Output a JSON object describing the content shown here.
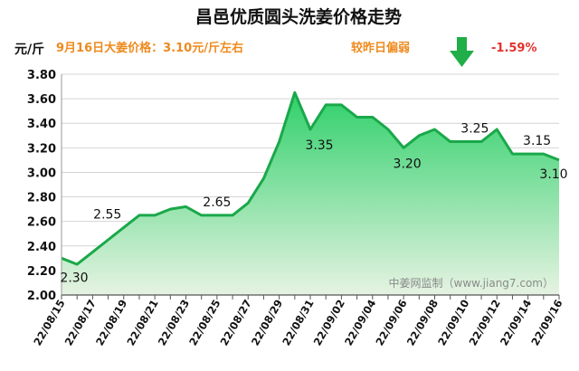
{
  "header": {
    "title": "昌邑优质圆头洗姜价格走势",
    "unit_label": "元/斤",
    "price_note": "9月16日大姜价格：3.10元/斤左右",
    "trend_note": "较昨日偏弱",
    "change_pct": "-1.59%",
    "trend_icon": "down-arrow-icon"
  },
  "watermark": "中姜网监制（www.jiang7.com）",
  "colors": {
    "line": "#1aa84a",
    "fill_top": "#2fd06a",
    "fill_bottom": "#e6f3e2",
    "orange": "#ee8a1e",
    "red": "#e2322d",
    "arrow": "#1fae48"
  },
  "chart_data": {
    "type": "area",
    "title": "昌邑优质圆头洗姜价格走势",
    "ylabel": "元/斤",
    "xlabel": "",
    "ylim": [
      2.0,
      3.8
    ],
    "yticks": [
      "2.00",
      "2.20",
      "2.40",
      "2.60",
      "2.80",
      "3.00",
      "3.20",
      "3.40",
      "3.60",
      "3.80"
    ],
    "x": [
      "22/08/15",
      "22/08/16",
      "22/08/17",
      "22/08/18",
      "22/08/19",
      "22/08/20",
      "22/08/21",
      "22/08/22",
      "22/08/23",
      "22/08/24",
      "22/08/25",
      "22/08/26",
      "22/08/27",
      "22/08/28",
      "22/08/29",
      "22/08/30",
      "22/08/31",
      "22/09/01",
      "22/09/02",
      "22/09/03",
      "22/09/04",
      "22/09/05",
      "22/09/06",
      "22/09/07",
      "22/09/08",
      "22/09/09",
      "22/09/10",
      "22/09/11",
      "22/09/12",
      "22/09/13",
      "22/09/14",
      "22/09/15",
      "22/09/16"
    ],
    "xticks_shown": [
      "22/08/15",
      "22/08/17",
      "22/08/19",
      "22/08/21",
      "22/08/23",
      "22/08/25",
      "22/08/27",
      "22/08/29",
      "22/08/31",
      "22/09/02",
      "22/09/04",
      "22/09/06",
      "22/09/08",
      "22/09/10",
      "22/09/12",
      "22/09/14",
      "22/09/16"
    ],
    "series": [
      {
        "values": [
          2.3,
          2.25,
          2.35,
          2.45,
          2.55,
          2.65,
          2.65,
          2.7,
          2.72,
          2.65,
          2.65,
          2.65,
          2.75,
          2.95,
          3.25,
          3.65,
          3.35,
          3.55,
          3.55,
          3.45,
          3.45,
          3.35,
          3.2,
          3.3,
          3.35,
          3.25,
          3.25,
          3.25,
          3.35,
          3.15,
          3.15,
          3.15,
          3.1
        ]
      }
    ],
    "data_labels": [
      {
        "x": "22/08/15",
        "text": "2.30"
      },
      {
        "x": "22/08/19",
        "text": "2.55"
      },
      {
        "x": "22/08/25",
        "text": "2.65"
      },
      {
        "x": "22/08/31",
        "text": "3.35"
      },
      {
        "x": "22/09/06",
        "text": "3.20"
      },
      {
        "x": "22/09/10",
        "text": "3.25"
      },
      {
        "x": "22/09/14",
        "text": "3.15"
      },
      {
        "x": "22/09/16",
        "text": "3.10"
      }
    ],
    "grid": true,
    "legend": "none"
  }
}
